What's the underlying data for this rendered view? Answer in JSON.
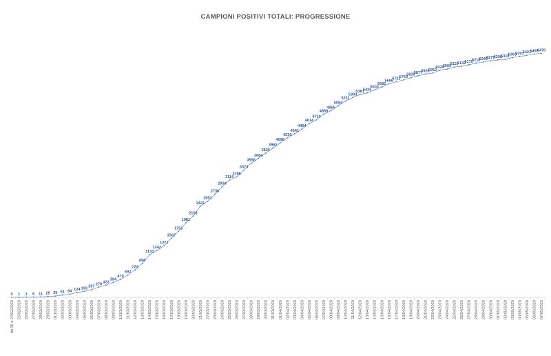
{
  "chart_data": {
    "type": "line",
    "title": "CAMPIONI POSITIVI TOTALI: PROGRESSIONE",
    "xlabel": "",
    "ylabel": "",
    "ylim": [
      0,
      6700
    ],
    "grid": false,
    "legend": "none",
    "colors": {
      "line": "#4472c4",
      "labels": "#2f5597",
      "axis": "#d0d0d0",
      "title": "#595959"
    },
    "categories": [
      "da 06 a 24/02/2020",
      "25/02/2020",
      "26/02/2020",
      "27/02/2020",
      "28/02/2020",
      "29/02/2020",
      "01/03/2020",
      "02/03/2020",
      "03/03/2020",
      "04/03/2020",
      "05/03/2020",
      "06/03/2020",
      "07/03/2020",
      "08/03/2020",
      "09/03/2020",
      "10/03/2020",
      "11/03/2020",
      "12/03/2020",
      "13/03/2020",
      "14/03/2020",
      "15/03/2020",
      "16/03/2020",
      "17/03/2020",
      "18/03/2020",
      "19/03/2020",
      "20/03/2020",
      "21/03/2020",
      "22/03/2020",
      "23/03/2020",
      "24/03/2020",
      "25/03/2020",
      "26/03/2020",
      "27/03/2020",
      "28/03/2020",
      "29/03/2020",
      "30/03/2020",
      "31/03/2020",
      "01/04/2020",
      "02/04/2020",
      "03/04/2020",
      "04/04/2020",
      "05/04/2020",
      "06/04/2020",
      "07/04/2020",
      "08/04/2020",
      "09/04/2020",
      "10/04/2020",
      "11/04/2020",
      "12/04/2020",
      "13/04/2020",
      "14/04/2020",
      "15/04/2020",
      "16/04/2020",
      "17/04/2020",
      "18/04/2020",
      "19/04/2020",
      "20/04/2020",
      "21/04/2020",
      "22/04/2020",
      "23/04/2020",
      "24/04/2020",
      "25/04/2020",
      "26/04/2020",
      "27/04/2020",
      "28/04/2020",
      "29/04/2020",
      "30/04/2020",
      "01/05/2020",
      "02/05/2020",
      "03/05/2020",
      "04/05/2020",
      "05/05/2020",
      "06/05/2020",
      "07/05/2020"
    ],
    "series": [
      {
        "values": [
          0,
          1,
          3,
          6,
          11,
          25,
          35,
          61,
          84,
          124,
          159,
          207,
          270,
          323,
          394,
          479,
          592,
          724,
          898,
          1133,
          1242,
          1371,
          1567,
          1751,
          1981,
          2153,
          2421,
          2551,
          2736,
          2934,
          3114,
          3196,
          3373,
          3558,
          3684,
          3825,
          3962,
          4098,
          4230,
          4341,
          4464,
          4614,
          4710,
          4859,
          4955,
          5084,
          5211,
          5303,
          5381,
          5426,
          5503,
          5582,
          5666,
          5721,
          5769,
          5829,
          5877,
          5926,
          5952,
          6026,
          6056,
          6110,
          6132,
          6170,
          6216,
          6245,
          6275,
          6298,
          6315,
          6363,
          6391,
          6421,
          6455,
          6470
        ]
      }
    ]
  }
}
